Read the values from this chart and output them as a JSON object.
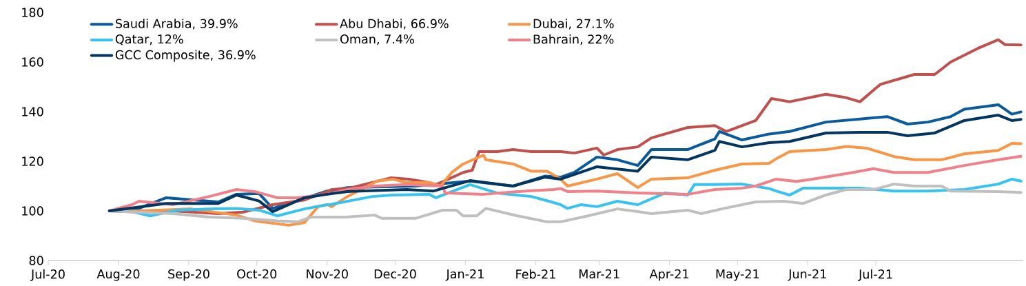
{
  "chart_data": {
    "type": "line",
    "xlim": [
      "2020-07-01",
      "2021-09-04"
    ],
    "xticks": [
      {
        "value": "2020-07-01",
        "label": "Jul-20"
      },
      {
        "value": "2020-08-01",
        "label": "Aug-20"
      },
      {
        "value": "2020-09-01",
        "label": "Sep-20"
      },
      {
        "value": "2020-10-01",
        "label": "Oct-20"
      },
      {
        "value": "2020-11-01",
        "label": "Nov-20"
      },
      {
        "value": "2020-12-01",
        "label": "Dec-20"
      },
      {
        "value": "2021-01-01",
        "label": "Jan-21"
      },
      {
        "value": "2021-02-01",
        "label": "Feb-21"
      },
      {
        "value": "2021-03-01",
        "label": "Mar-21"
      },
      {
        "value": "2021-04-01",
        "label": "Apr-21"
      },
      {
        "value": "2021-05-01",
        "label": "May-21"
      },
      {
        "value": "2021-06-01",
        "label": "Jun-21"
      },
      {
        "value": "2021-07-01",
        "label": "Jul-21"
      }
    ],
    "ylim": [
      80,
      180
    ],
    "yticks": [
      80,
      100,
      120,
      140,
      160,
      180
    ],
    "legend": "top left",
    "line_style": "solid",
    "series": [
      {
        "name": "Saudi Arabia, 39.9%",
        "color": "#0b5a9c",
        "x": [
          "2020-07-28",
          "2020-08-10",
          "2020-08-22",
          "2020-09-14",
          "2020-09-22",
          "2020-10-02",
          "2020-10-08",
          "2020-10-17",
          "2020-11-01",
          "2020-11-10",
          "2020-12-10",
          "2021-01-03",
          "2021-01-22",
          "2021-02-05",
          "2021-02-12",
          "2021-02-18",
          "2021-02-28",
          "2021-03-09",
          "2021-03-18",
          "2021-03-24",
          "2021-04-09",
          "2021-04-21",
          "2021-04-23",
          "2021-05-03",
          "2021-05-15",
          "2021-05-24",
          "2021-06-09",
          "2021-06-24",
          "2021-07-06",
          "2021-07-15",
          "2021-07-24",
          "2021-08-03",
          "2021-08-09",
          "2021-08-24",
          "2021-08-30",
          "2021-09-03"
        ],
        "values": [
          100,
          101,
          105.3,
          103.6,
          106.7,
          107,
          101,
          103.6,
          108,
          109.4,
          110,
          112,
          110,
          114,
          113.6,
          115.5,
          121.7,
          120.6,
          118.3,
          124.7,
          124.7,
          129,
          132,
          128.6,
          131,
          132,
          135.8,
          137,
          138,
          135,
          135.8,
          138,
          141,
          142.8,
          139,
          139.9
        ]
      },
      {
        "name": "Abu Dhabi, 66.9%",
        "color": "#c0504d",
        "x": [
          "2020-07-28",
          "2020-08-10",
          "2020-08-25",
          "2020-09-14",
          "2020-09-25",
          "2020-10-08",
          "2020-10-22",
          "2020-11-01",
          "2020-11-03",
          "2020-11-10",
          "2020-11-29",
          "2020-12-07",
          "2020-12-16",
          "2020-12-19",
          "2020-12-23",
          "2020-12-31",
          "2021-01-04",
          "2021-01-07",
          "2021-01-15",
          "2021-01-22",
          "2021-01-30",
          "2021-02-12",
          "2021-02-18",
          "2021-02-28",
          "2021-03-03",
          "2021-03-09",
          "2021-03-18",
          "2021-03-24",
          "2021-04-09",
          "2021-04-21",
          "2021-04-26",
          "2021-05-09",
          "2021-05-16",
          "2021-05-24",
          "2021-06-09",
          "2021-06-18",
          "2021-06-24",
          "2021-07-03",
          "2021-07-18",
          "2021-07-27",
          "2021-08-03",
          "2021-08-15",
          "2021-08-24",
          "2021-08-27",
          "2021-09-03"
        ],
        "values": [
          100,
          99.5,
          100,
          98.9,
          99.5,
          102.5,
          104.4,
          107.8,
          108.6,
          109,
          113.3,
          112.8,
          111.4,
          110.6,
          112.2,
          115.5,
          116.4,
          123.9,
          123.9,
          124.7,
          123.9,
          123.9,
          123.3,
          125.3,
          122.5,
          124.7,
          125.8,
          129.4,
          133.6,
          134.4,
          132,
          136.4,
          145.3,
          144,
          147,
          145.6,
          144,
          151,
          155,
          155,
          160,
          165.5,
          169,
          167,
          166.9
        ]
      },
      {
        "name": "Dubai, 27.1%",
        "color": "#f79646",
        "x": [
          "2020-07-28",
          "2020-08-10",
          "2020-09-02",
          "2020-09-22",
          "2020-09-30",
          "2020-10-15",
          "2020-10-22",
          "2020-10-28",
          "2020-11-01",
          "2020-11-03",
          "2020-11-10",
          "2020-11-23",
          "2020-11-30",
          "2020-12-06",
          "2020-12-16",
          "2020-12-21",
          "2020-12-26",
          "2020-12-31",
          "2021-01-09",
          "2021-01-10",
          "2021-01-22",
          "2021-01-30",
          "2021-02-06",
          "2021-02-12",
          "2021-02-15",
          "2021-02-28",
          "2021-03-09",
          "2021-03-18",
          "2021-03-24",
          "2021-04-09",
          "2021-04-21",
          "2021-05-03",
          "2021-05-15",
          "2021-05-18",
          "2021-05-24",
          "2021-06-09",
          "2021-06-18",
          "2021-06-27",
          "2021-07-09",
          "2021-07-18",
          "2021-07-30",
          "2021-08-09",
          "2021-08-24",
          "2021-08-30",
          "2021-09-03"
        ],
        "values": [
          100,
          100,
          100.8,
          98.3,
          96,
          94.2,
          95.3,
          101.7,
          102.5,
          101.7,
          105.8,
          112,
          112.8,
          111.4,
          111.4,
          110,
          115.5,
          118.9,
          122.5,
          120.6,
          118.9,
          116,
          116,
          112.8,
          110,
          112.8,
          115,
          109.4,
          112.8,
          113.3,
          116.4,
          118.9,
          119.2,
          121,
          123.9,
          124.7,
          126,
          125.3,
          121.9,
          120.6,
          120.6,
          123,
          124.4,
          127.2,
          127.1
        ]
      },
      {
        "name": "Qatar, 12%",
        "color": "#37c3f0",
        "x": [
          "2020-07-28",
          "2020-08-07",
          "2020-08-15",
          "2020-08-27",
          "2020-09-12",
          "2020-09-22",
          "2020-10-02",
          "2020-10-10",
          "2020-10-22",
          "2020-11-01",
          "2020-11-02",
          "2020-11-13",
          "2020-11-21",
          "2020-11-30",
          "2020-12-16",
          "2020-12-19",
          "2021-01-03",
          "2021-01-15",
          "2021-01-30",
          "2021-02-08",
          "2021-02-12",
          "2021-02-15",
          "2021-02-21",
          "2021-02-28",
          "2021-03-09",
          "2021-03-18",
          "2021-03-30",
          "2021-04-09",
          "2021-04-12",
          "2021-04-21",
          "2021-05-03",
          "2021-05-15",
          "2021-05-18",
          "2021-05-24",
          "2021-05-30",
          "2021-06-24",
          "2021-07-09",
          "2021-07-24",
          "2021-08-09",
          "2021-08-24",
          "2021-08-30",
          "2021-09-03"
        ],
        "values": [
          100,
          99.7,
          98,
          100.3,
          100.8,
          101,
          100.3,
          98,
          100.8,
          102.5,
          102.5,
          104.4,
          105.8,
          106.4,
          106.7,
          105.3,
          110.6,
          107.2,
          105.8,
          103.6,
          102.5,
          101,
          102.5,
          101.7,
          103.9,
          102.5,
          107.2,
          106.4,
          110.6,
          110.6,
          110.8,
          109,
          108,
          106.4,
          109.2,
          109.2,
          108,
          108,
          108.6,
          110.8,
          112.8,
          112
        ]
      },
      {
        "name": "Oman, 7.4%",
        "color": "#bfbfbf",
        "x": [
          "2020-07-28",
          "2020-08-25",
          "2020-09-10",
          "2020-09-25",
          "2020-10-10",
          "2020-10-19",
          "2020-10-25",
          "2020-11-01",
          "2020-11-09",
          "2020-11-22",
          "2020-11-25",
          "2020-12-10",
          "2020-12-22",
          "2020-12-28",
          "2020-12-31",
          "2021-01-06",
          "2021-01-10",
          "2021-01-24",
          "2021-02-06",
          "2021-02-12",
          "2021-02-24",
          "2021-03-09",
          "2021-03-18",
          "2021-03-24",
          "2021-04-09",
          "2021-04-15",
          "2021-04-24",
          "2021-05-09",
          "2021-05-21",
          "2021-05-24",
          "2021-05-30",
          "2021-06-09",
          "2021-06-18",
          "2021-06-30",
          "2021-07-09",
          "2021-07-18",
          "2021-07-30",
          "2021-08-03",
          "2021-08-24",
          "2021-09-03"
        ],
        "values": [
          100,
          98.9,
          97.5,
          97,
          96,
          95.6,
          97.5,
          97.5,
          97.5,
          98.3,
          97,
          97,
          100.3,
          100.3,
          98,
          98,
          101,
          98,
          95.6,
          95.6,
          98,
          100.8,
          99.7,
          98.9,
          100.3,
          98.9,
          100.8,
          103.6,
          103.9,
          103.6,
          103,
          106.4,
          108.6,
          108.6,
          110.8,
          110,
          110,
          108,
          107.8,
          107.4
        ]
      },
      {
        "name": "Bahrain, 22%",
        "color": "#f0808a",
        "x": [
          "2020-07-28",
          "2020-08-07",
          "2020-08-10",
          "2020-08-25",
          "2020-09-10",
          "2020-09-22",
          "2020-09-30",
          "2020-10-10",
          "2020-10-19",
          "2020-11-01",
          "2020-11-10",
          "2020-11-22",
          "2020-12-06",
          "2020-12-22",
          "2020-12-23",
          "2021-01-09",
          "2021-01-24",
          "2021-02-09",
          "2021-02-12",
          "2021-02-15",
          "2021-02-28",
          "2021-03-18",
          "2021-04-09",
          "2021-04-21",
          "2021-05-03",
          "2021-05-09",
          "2021-05-18",
          "2021-05-27",
          "2021-06-03",
          "2021-06-21",
          "2021-06-30",
          "2021-07-09",
          "2021-07-24",
          "2021-08-09",
          "2021-08-24",
          "2021-09-03"
        ],
        "values": [
          100,
          102.5,
          103.9,
          102.5,
          105.8,
          108.6,
          107.8,
          105.3,
          105.3,
          106.7,
          108.6,
          110,
          110.6,
          110,
          107.2,
          106.7,
          107.8,
          108.6,
          109,
          107.8,
          108,
          107.2,
          106.7,
          108.6,
          109.2,
          110,
          112.8,
          111.9,
          112.8,
          115.5,
          117,
          115.5,
          115.5,
          118.3,
          120.6,
          122
        ]
      },
      {
        "name": "GCC Composite, 36.9%",
        "color": "#03355f",
        "x": [
          "2020-07-28",
          "2020-08-22",
          "2020-09-14",
          "2020-09-22",
          "2020-10-02",
          "2020-10-08",
          "2020-10-22",
          "2020-11-01",
          "2020-11-10",
          "2020-12-06",
          "2020-12-18",
          "2021-01-03",
          "2021-01-22",
          "2021-02-05",
          "2021-02-12",
          "2021-02-28",
          "2021-03-18",
          "2021-03-24",
          "2021-04-09",
          "2021-04-21",
          "2021-04-23",
          "2021-05-03",
          "2021-05-15",
          "2021-05-24",
          "2021-06-09",
          "2021-06-24",
          "2021-07-06",
          "2021-07-15",
          "2021-07-27",
          "2021-08-09",
          "2021-08-24",
          "2021-08-30",
          "2021-09-03"
        ],
        "values": [
          100,
          103,
          103,
          106.4,
          104,
          99.7,
          105.3,
          106.7,
          107.8,
          108.6,
          108,
          112.2,
          110,
          113.6,
          112.8,
          117.8,
          116,
          121.7,
          120.6,
          124.4,
          128,
          125.8,
          127.5,
          128,
          131.4,
          131.7,
          131.7,
          130.3,
          131.4,
          136.4,
          138.6,
          136.4,
          136.9
        ]
      }
    ]
  }
}
